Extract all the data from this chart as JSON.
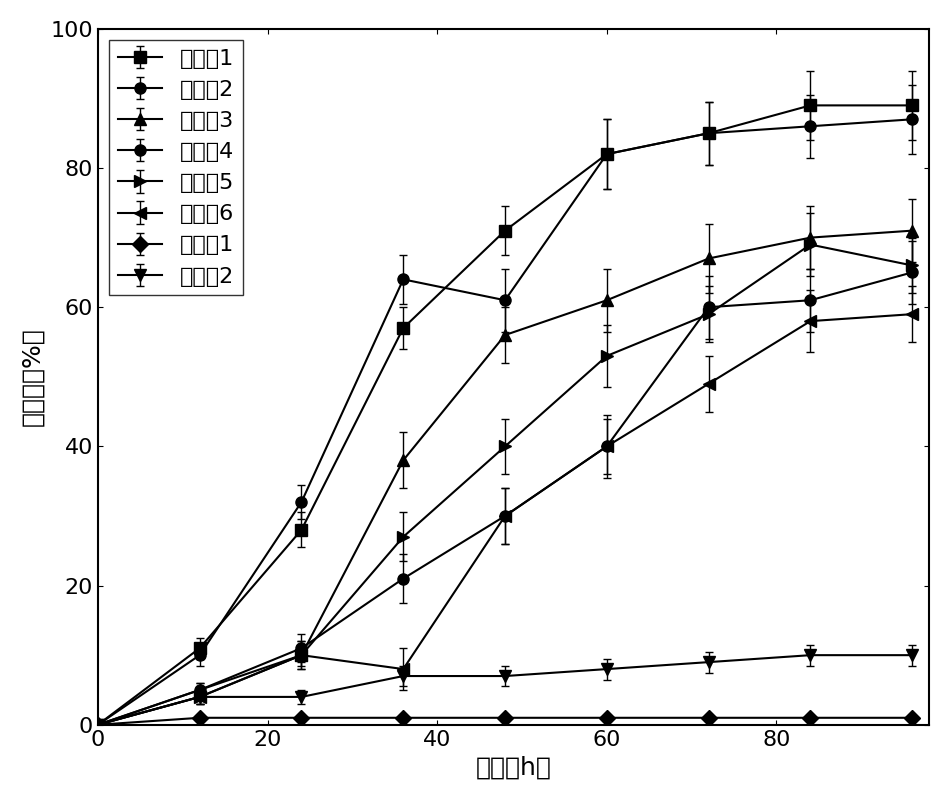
{
  "x": [
    0,
    12,
    24,
    36,
    48,
    60,
    72,
    84,
    96
  ],
  "series": [
    {
      "label": "实施例1",
      "y": [
        0,
        11,
        28,
        57,
        71,
        82,
        85,
        89,
        89
      ],
      "yerr": [
        0,
        1.5,
        2.5,
        3.0,
        3.5,
        5.0,
        4.5,
        5.0,
        5.0
      ],
      "marker": "s"
    },
    {
      "label": "实施例2",
      "y": [
        0,
        10,
        32,
        64,
        61,
        82,
        85,
        86,
        87
      ],
      "yerr": [
        0,
        1.5,
        2.5,
        3.5,
        4.5,
        5.0,
        4.5,
        4.5,
        5.0
      ],
      "marker": "o"
    },
    {
      "label": "实施例3",
      "y": [
        0,
        5,
        10,
        38,
        56,
        61,
        67,
        70,
        71
      ],
      "yerr": [
        0,
        1.0,
        2.0,
        4.0,
        4.0,
        4.5,
        5.0,
        4.5,
        4.5
      ],
      "marker": "^"
    },
    {
      "label": "实施例4",
      "y": [
        0,
        5,
        11,
        21,
        30,
        40,
        60,
        61,
        65
      ],
      "yerr": [
        0,
        1.0,
        2.0,
        3.5,
        4.0,
        4.5,
        4.5,
        4.5,
        4.5
      ],
      "marker": "o"
    },
    {
      "label": "实施例5",
      "y": [
        0,
        4,
        10,
        27,
        40,
        53,
        59,
        69,
        66
      ],
      "yerr": [
        0,
        1.0,
        2.0,
        3.5,
        4.0,
        4.5,
        4.0,
        4.5,
        4.0
      ],
      "marker": ">"
    },
    {
      "label": "实施例6",
      "y": [
        0,
        4,
        10,
        8,
        30,
        40,
        49,
        58,
        59
      ],
      "yerr": [
        0,
        1.0,
        1.5,
        3.0,
        4.0,
        4.0,
        4.0,
        4.5,
        4.0
      ],
      "marker": "<"
    },
    {
      "label": "对比例1",
      "y": [
        0,
        1,
        1,
        1,
        1,
        1,
        1,
        1,
        1
      ],
      "yerr": [
        0,
        0.3,
        0.3,
        0.3,
        0.3,
        0.3,
        0.3,
        0.3,
        0.3
      ],
      "marker": "D"
    },
    {
      "label": "对比例2",
      "y": [
        0,
        4,
        4,
        7,
        7,
        8,
        9,
        10,
        10
      ],
      "yerr": [
        0,
        1.0,
        1.0,
        1.5,
        1.5,
        1.5,
        1.5,
        1.5,
        1.5
      ],
      "marker": "v"
    }
  ],
  "xlabel": "时间（h）",
  "ylabel": "失重率（%）",
  "xlim": [
    0,
    98
  ],
  "ylim": [
    0,
    100
  ],
  "xticks": [
    0,
    20,
    40,
    60,
    80
  ],
  "yticks": [
    0,
    20,
    40,
    60,
    80,
    100
  ],
  "line_color": "#000000",
  "markersize": 8,
  "linewidth": 1.5,
  "capsize": 3,
  "elinewidth": 1.0,
  "legend_loc": "upper left",
  "font_size": 16,
  "label_font_size": 18,
  "tick_font_size": 16
}
